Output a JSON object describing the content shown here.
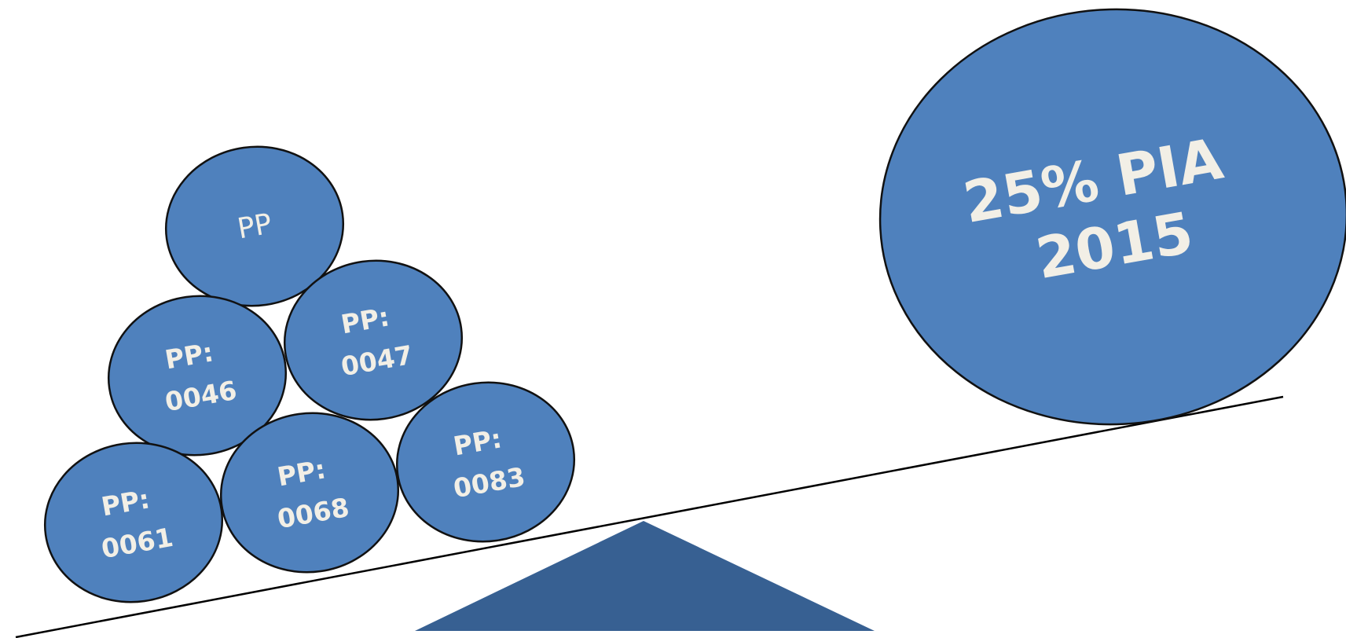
{
  "diagram": {
    "colors": {
      "ball_fill": "#4f81bd",
      "ball_outline": "#111111",
      "fulcrum_fill": "#376092",
      "text": "#f2efe6"
    },
    "balls": [
      {
        "id": "pp",
        "lines": [
          "PP"
        ]
      },
      {
        "id": "pp-0046",
        "lines": [
          "PP:",
          "0046"
        ]
      },
      {
        "id": "pp-0047",
        "lines": [
          "PP:",
          "0047"
        ]
      },
      {
        "id": "pp-0061",
        "lines": [
          "PP:",
          "0061"
        ]
      },
      {
        "id": "pp-0068",
        "lines": [
          "PP:",
          "0068"
        ]
      },
      {
        "id": "pp-0083",
        "lines": [
          "PP:",
          "0083"
        ]
      }
    ],
    "big_ball": {
      "id": "pia-2015",
      "lines": [
        "25% PIA",
        "2015"
      ]
    }
  }
}
